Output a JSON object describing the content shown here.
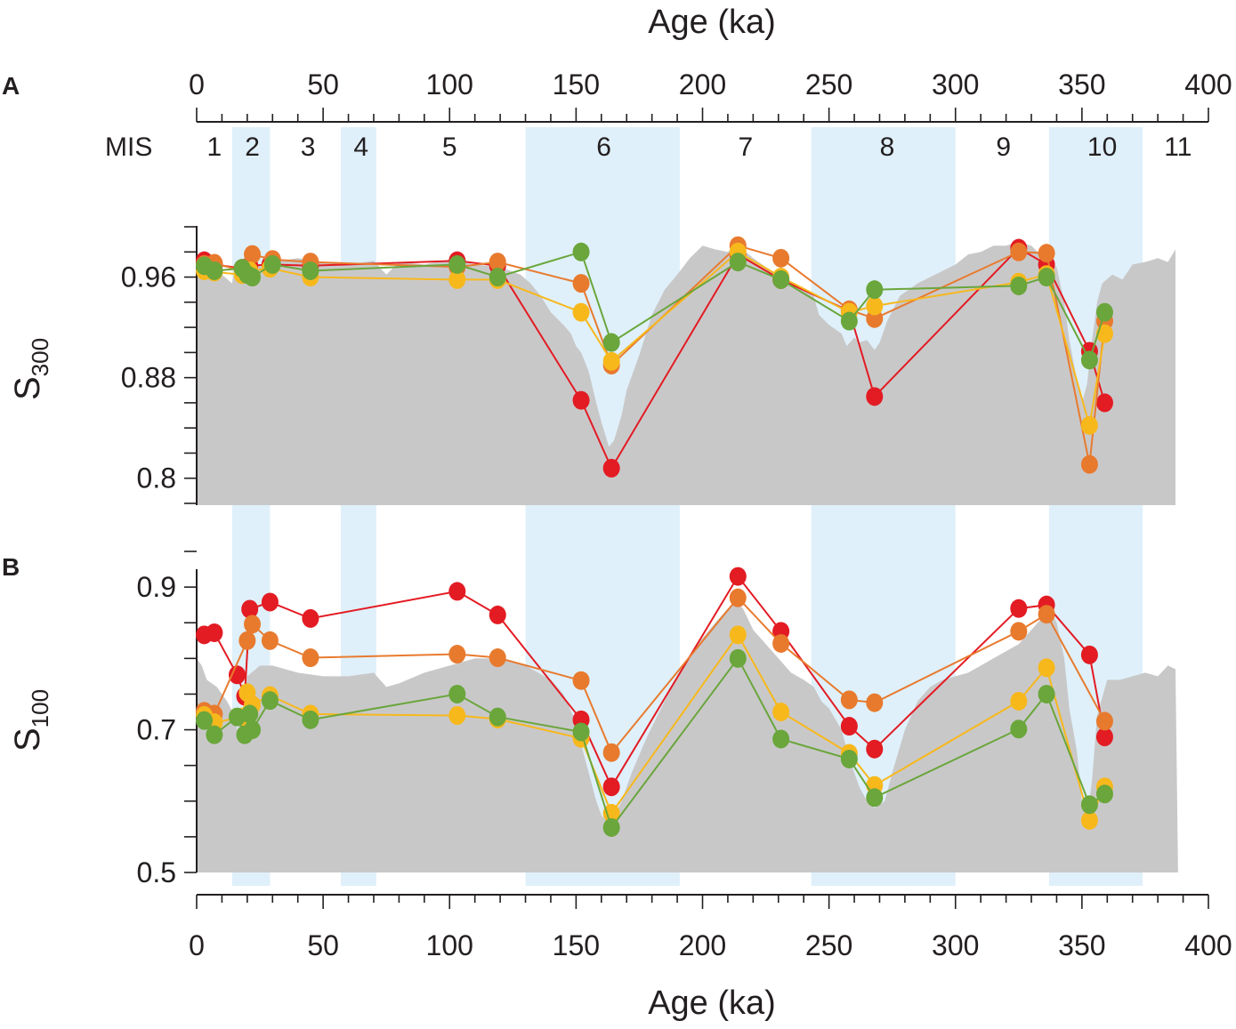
{
  "figure": {
    "top_axis_title": "Age (ka)",
    "bottom_axis_title": "Age (ka)",
    "mis_label": "MIS",
    "panel_a_label": "A",
    "panel_b_label": "B",
    "panel_a_ylabel_main": "S",
    "panel_a_ylabel_sub": "300",
    "panel_b_ylabel_main": "S",
    "panel_b_ylabel_sub": "100"
  },
  "colors": {
    "band": "#dff0fa",
    "background_area": "#c9c8c9",
    "red": "#e31b23",
    "orange": "#e87a2e",
    "yellow": "#f7b81c",
    "green": "#6aa63b",
    "axis": "#231f20"
  },
  "chart_data": [
    {
      "type": "line",
      "panel": "A",
      "title": "",
      "xlabel": "Age (ka)",
      "ylabel": "S300",
      "xlim": [
        0,
        400
      ],
      "ylim": [
        0.78,
        1.0
      ],
      "x_ticks": [
        0,
        50,
        100,
        150,
        200,
        250,
        300,
        350,
        400
      ],
      "x_tick_labels": [
        "0",
        "50",
        "100",
        "150",
        "200",
        "250",
        "300",
        "350",
        "400"
      ],
      "y_ticks": [
        0.8,
        0.88,
        0.96
      ],
      "y_tick_labels": [
        "0.8",
        "0.88",
        "0.96"
      ],
      "mis_stages": [
        {
          "label": "1",
          "center": 7,
          "shaded": false,
          "start": 0,
          "end": 14
        },
        {
          "label": "2",
          "center": 22,
          "shaded": true,
          "start": 14,
          "end": 29
        },
        {
          "label": "3",
          "center": 44,
          "shaded": false,
          "start": 29,
          "end": 57
        },
        {
          "label": "4",
          "center": 65,
          "shaded": true,
          "start": 57,
          "end": 71
        },
        {
          "label": "5",
          "center": 100,
          "shaded": false,
          "start": 71,
          "end": 130
        },
        {
          "label": "6",
          "center": 161,
          "shaded": true,
          "start": 130,
          "end": 191
        },
        {
          "label": "7",
          "center": 217,
          "shaded": false,
          "start": 191,
          "end": 243
        },
        {
          "label": "8",
          "center": 273,
          "shaded": true,
          "start": 243,
          "end": 300
        },
        {
          "label": "9",
          "center": 319,
          "shaded": false,
          "start": 300,
          "end": 337
        },
        {
          "label": "10",
          "center": 358,
          "shaded": true,
          "start": 337,
          "end": 374
        },
        {
          "label": "11",
          "center": 388,
          "shaded": false,
          "start": 374,
          "end": 400
        }
      ],
      "background": {
        "x": [
          0,
          5,
          10,
          14,
          15,
          20,
          25,
          30,
          40,
          50,
          60,
          70,
          75,
          80,
          90,
          100,
          110,
          120,
          128,
          132,
          136,
          140,
          145,
          148,
          150,
          152,
          155,
          158,
          160,
          163,
          165,
          168,
          170,
          175,
          180,
          185,
          190,
          195,
          200,
          205,
          210,
          213,
          216,
          220,
          225,
          230,
          235,
          240,
          244,
          246,
          250,
          255,
          257,
          260,
          262,
          265,
          268,
          270,
          273,
          278,
          285,
          295,
          300,
          305,
          310,
          315,
          320,
          325,
          330,
          335,
          340,
          343,
          345,
          348,
          350,
          352,
          354,
          356,
          358,
          362,
          366,
          370,
          375,
          380,
          384,
          387
        ],
        "y": [
          0.97,
          0.96,
          0.962,
          0.955,
          0.965,
          0.968,
          0.97,
          0.972,
          0.975,
          0.972,
          0.97,
          0.973,
          0.962,
          0.972,
          0.97,
          0.974,
          0.97,
          0.968,
          0.962,
          0.955,
          0.945,
          0.932,
          0.922,
          0.915,
          0.905,
          0.9,
          0.885,
          0.86,
          0.845,
          0.825,
          0.83,
          0.85,
          0.87,
          0.898,
          0.93,
          0.95,
          0.962,
          0.975,
          0.985,
          0.982,
          0.98,
          0.985,
          0.982,
          0.975,
          0.968,
          0.962,
          0.955,
          0.95,
          0.945,
          0.93,
          0.922,
          0.915,
          0.905,
          0.912,
          0.908,
          0.91,
          0.902,
          0.908,
          0.925,
          0.945,
          0.955,
          0.965,
          0.97,
          0.978,
          0.98,
          0.985,
          0.985,
          0.988,
          0.985,
          0.975,
          0.968,
          0.94,
          0.91,
          0.878,
          0.86,
          0.875,
          0.91,
          0.94,
          0.955,
          0.962,
          0.958,
          0.97,
          0.972,
          0.975,
          0.972,
          0.982
        ]
      },
      "series": [
        {
          "name": "red",
          "color": "red",
          "x": [
            3,
            7,
            18,
            21,
            29,
            45,
            103,
            119,
            152,
            164,
            214,
            231,
            258,
            268,
            325,
            336,
            353,
            359
          ],
          "y": [
            0.973,
            0.97,
            0.967,
            0.969,
            0.97,
            0.969,
            0.973,
            0.969,
            0.862,
            0.808,
            0.978,
            0.958,
            0.933,
            0.865,
            0.983,
            0.97,
            0.901,
            0.86
          ]
        },
        {
          "name": "orange",
          "color": "orange",
          "x": [
            3,
            7,
            18,
            22,
            30,
            45,
            103,
            119,
            152,
            164,
            214,
            231,
            258,
            268,
            325,
            336,
            353,
            359
          ],
          "y": [
            0.97,
            0.971,
            0.965,
            0.978,
            0.974,
            0.972,
            0.968,
            0.972,
            0.955,
            0.89,
            0.985,
            0.975,
            0.934,
            0.927,
            0.98,
            0.979,
            0.811,
            0.925
          ]
        },
        {
          "name": "yellow",
          "color": "yellow",
          "x": [
            3,
            7,
            18,
            21,
            29,
            45,
            103,
            119,
            152,
            164,
            214,
            231,
            258,
            268,
            325,
            336,
            353,
            359
          ],
          "y": [
            0.965,
            0.964,
            0.962,
            0.965,
            0.967,
            0.96,
            0.958,
            0.958,
            0.932,
            0.893,
            0.98,
            0.96,
            0.932,
            0.937,
            0.956,
            0.962,
            0.842,
            0.915
          ]
        },
        {
          "name": "green",
          "color": "green",
          "x": [
            3,
            7,
            18,
            20,
            22,
            30,
            45,
            103,
            119,
            152,
            164,
            214,
            231,
            258,
            268,
            325,
            336,
            353,
            359
          ],
          "y": [
            0.969,
            0.965,
            0.967,
            0.962,
            0.96,
            0.97,
            0.965,
            0.97,
            0.96,
            0.98,
            0.908,
            0.972,
            0.958,
            0.925,
            0.95,
            0.953,
            0.96,
            0.894,
            0.932
          ]
        }
      ]
    },
    {
      "type": "line",
      "panel": "B",
      "title": "",
      "xlabel": "Age (ka)",
      "ylabel": "S100",
      "xlim": [
        0,
        400
      ],
      "ylim": [
        0.5,
        0.95
      ],
      "x_ticks": [
        0,
        50,
        100,
        150,
        200,
        250,
        300,
        350,
        400
      ],
      "x_tick_labels": [
        "0",
        "50",
        "100",
        "150",
        "200",
        "250",
        "300",
        "350",
        "400"
      ],
      "y_ticks": [
        0.5,
        0.7,
        0.9
      ],
      "y_tick_labels": [
        "0.5",
        "0.7",
        "0.9"
      ],
      "background": {
        "x": [
          0,
          2,
          4,
          8,
          12,
          15,
          16,
          18,
          20,
          25,
          30,
          40,
          50,
          60,
          70,
          75,
          80,
          90,
          100,
          110,
          120,
          130,
          135,
          140,
          145,
          150,
          152,
          155,
          158,
          160,
          163,
          165,
          168,
          172,
          178,
          185,
          192,
          198,
          205,
          210,
          213,
          216,
          220,
          225,
          230,
          235,
          240,
          244,
          247,
          250,
          255,
          258,
          262,
          265,
          268,
          272,
          275,
          280,
          285,
          290,
          295,
          300,
          305,
          310,
          315,
          320,
          325,
          330,
          335,
          337,
          340,
          343,
          345,
          348,
          350,
          352,
          354,
          356,
          360,
          365,
          370,
          375,
          380,
          384,
          387,
          388
        ],
        "y": [
          0.8,
          0.79,
          0.77,
          0.76,
          0.74,
          0.72,
          0.7,
          0.72,
          0.775,
          0.79,
          0.79,
          0.78,
          0.775,
          0.775,
          0.78,
          0.76,
          0.765,
          0.78,
          0.79,
          0.8,
          0.8,
          0.79,
          0.78,
          0.77,
          0.75,
          0.71,
          0.68,
          0.64,
          0.6,
          0.58,
          0.57,
          0.58,
          0.6,
          0.64,
          0.69,
          0.74,
          0.79,
          0.82,
          0.85,
          0.87,
          0.88,
          0.87,
          0.84,
          0.82,
          0.8,
          0.78,
          0.77,
          0.76,
          0.74,
          0.73,
          0.7,
          0.66,
          0.62,
          0.6,
          0.59,
          0.6,
          0.64,
          0.7,
          0.74,
          0.76,
          0.77,
          0.775,
          0.78,
          0.79,
          0.8,
          0.81,
          0.82,
          0.84,
          0.86,
          0.87,
          0.85,
          0.8,
          0.73,
          0.67,
          0.6,
          0.57,
          0.63,
          0.72,
          0.77,
          0.77,
          0.775,
          0.78,
          0.775,
          0.79,
          0.785,
          0.5
        ]
      },
      "series": [
        {
          "name": "red",
          "color": "red",
          "x": [
            3,
            7,
            16,
            19,
            21,
            29,
            45,
            103,
            119,
            152,
            164,
            214,
            231,
            258,
            268,
            325,
            336,
            353,
            359
          ],
          "y": [
            0.833,
            0.836,
            0.777,
            0.747,
            0.869,
            0.879,
            0.856,
            0.894,
            0.861,
            0.714,
            0.62,
            0.915,
            0.838,
            0.705,
            0.673,
            0.87,
            0.875,
            0.805,
            0.69
          ]
        },
        {
          "name": "orange",
          "color": "orange",
          "x": [
            3,
            7,
            20,
            22,
            29,
            45,
            103,
            119,
            152,
            164,
            214,
            231,
            258,
            268,
            325,
            336,
            359
          ],
          "y": [
            0.726,
            0.722,
            0.825,
            0.848,
            0.825,
            0.801,
            0.806,
            0.801,
            0.769,
            0.668,
            0.885,
            0.821,
            0.742,
            0.738,
            0.838,
            0.862,
            0.712
          ]
        },
        {
          "name": "yellow",
          "color": "yellow",
          "x": [
            3,
            7,
            18,
            20,
            22,
            29,
            45,
            103,
            119,
            152,
            164,
            214,
            231,
            258,
            268,
            325,
            336,
            353,
            359
          ],
          "y": [
            0.72,
            0.71,
            0.718,
            0.752,
            0.735,
            0.748,
            0.722,
            0.72,
            0.715,
            0.688,
            0.583,
            0.833,
            0.725,
            0.667,
            0.622,
            0.74,
            0.787,
            0.573,
            0.62
          ]
        },
        {
          "name": "green",
          "color": "green",
          "x": [
            3,
            7,
            16,
            19,
            21,
            22,
            29,
            45,
            103,
            119,
            152,
            164,
            214,
            231,
            258,
            268,
            325,
            336,
            353,
            359
          ],
          "y": [
            0.713,
            0.693,
            0.718,
            0.693,
            0.722,
            0.7,
            0.741,
            0.714,
            0.75,
            0.718,
            0.697,
            0.563,
            0.8,
            0.687,
            0.659,
            0.605,
            0.701,
            0.75,
            0.595,
            0.61
          ]
        }
      ]
    }
  ]
}
